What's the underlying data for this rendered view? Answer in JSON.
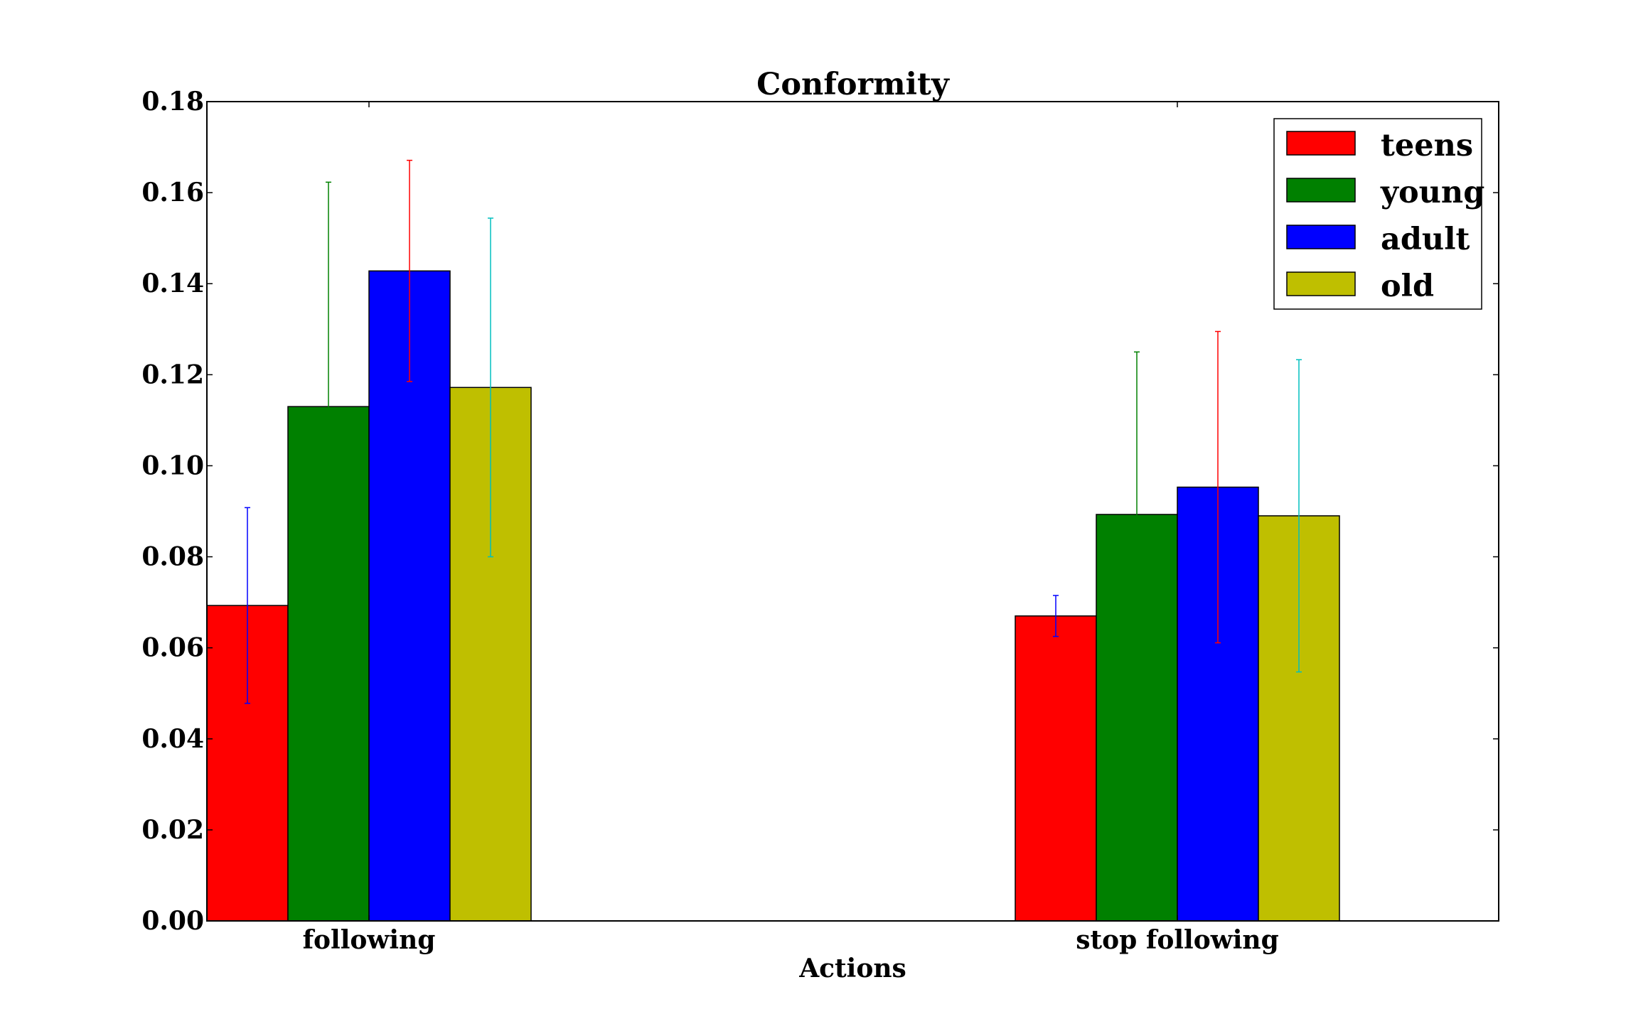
{
  "chart_data": {
    "type": "bar",
    "title": "Conformity",
    "xlabel": "Actions",
    "ylabel": "",
    "categories": [
      "following",
      "stop following"
    ],
    "ylim": [
      0,
      0.18
    ],
    "yticks": [
      "0.00",
      "0.02",
      "0.04",
      "0.06",
      "0.08",
      "0.10",
      "0.12",
      "0.14",
      "0.16",
      "0.18"
    ],
    "legend_position": "top-right",
    "grid": false,
    "series": [
      {
        "name": "teens",
        "color": "#ff0000",
        "error_color": "#0000ff",
        "values": [
          0.0693,
          0.067
        ],
        "errors": [
          0.0215,
          0.0045
        ]
      },
      {
        "name": "young",
        "color": "#008000",
        "error_color": "#008000",
        "values": [
          0.113,
          0.0893
        ],
        "errors": [
          0.0493,
          0.0357
        ]
      },
      {
        "name": "adult",
        "color": "#0000ff",
        "error_color": "#ff0000",
        "values": [
          0.1428,
          0.0953
        ],
        "errors": [
          0.0243,
          0.0342
        ]
      },
      {
        "name": "old",
        "color": "#bfbf00",
        "error_color": "#00bfbf",
        "values": [
          0.1172,
          0.089
        ],
        "errors": [
          0.0372,
          0.0343
        ]
      }
    ]
  }
}
